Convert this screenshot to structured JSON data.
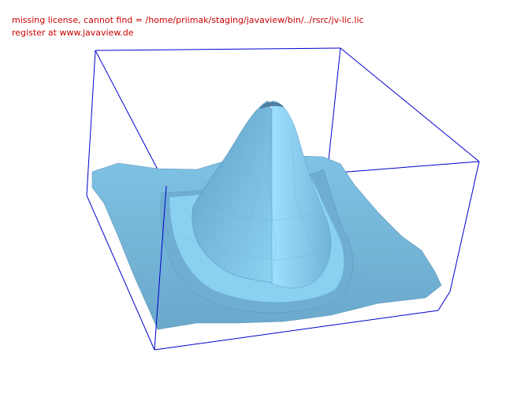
{
  "viewer": {
    "license_warning": "missing license, cannot find = /home/priimak/staging/javaview/bin/../rsrc/jv-lic.lic",
    "register_note": "register at www.javaview.de"
  },
  "colors": {
    "background": "#ffffff",
    "warning_text": "#cc0000",
    "bounding_box": "#0000cc",
    "surface_light": "#8fd8f8",
    "surface_mid": "#7fc6e8",
    "surface_dark": "#4f8fb4"
  },
  "scene": {
    "object": "3d-surface-mesh",
    "shape": "sombrero / peaked surface",
    "bounding_box_visible": true
  }
}
